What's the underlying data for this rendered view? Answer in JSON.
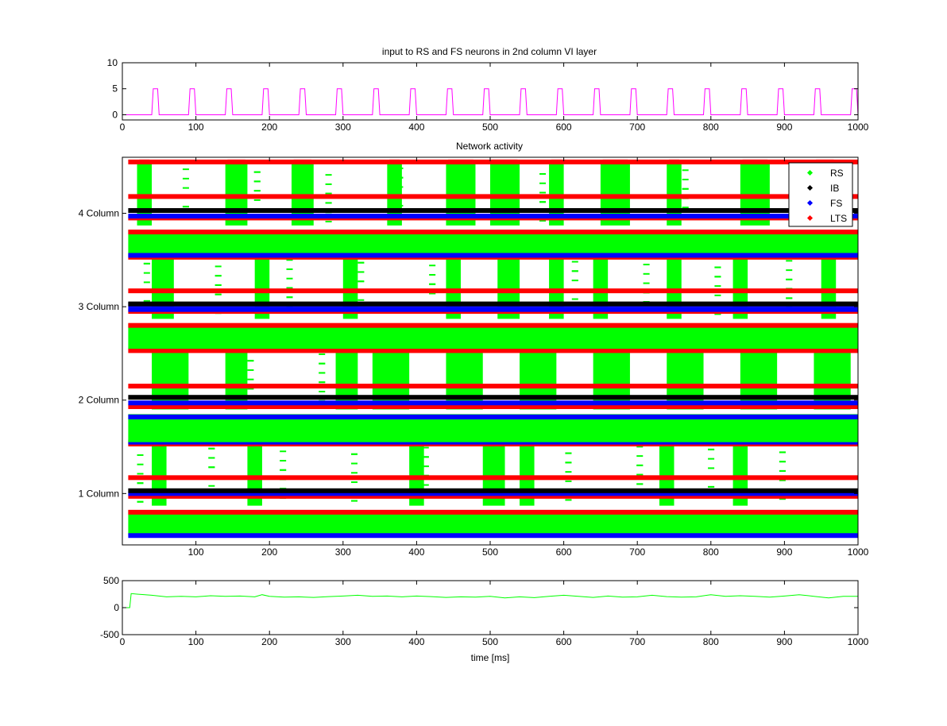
{
  "chart_data": [
    {
      "type": "line",
      "title": "input to RS and FS neurons in 2nd column VI layer",
      "xlim": [
        0,
        1000
      ],
      "ylim": [
        -1,
        10
      ],
      "xticks": [
        "0",
        "100",
        "200",
        "300",
        "400",
        "500",
        "600",
        "700",
        "800",
        "900",
        "1000"
      ],
      "yticks": [
        "0",
        "5",
        "10"
      ],
      "series": [
        {
          "color": "#ff00ff",
          "pulse_starts": [
            40,
            90,
            140,
            190,
            240,
            290,
            340,
            390,
            440,
            490,
            540,
            590,
            640,
            690,
            740,
            790,
            840,
            890,
            940,
            990
          ],
          "pulse_width": 10,
          "high": 5,
          "low": 0
        }
      ]
    },
    {
      "type": "scatter",
      "title": "Network activity",
      "xlim": [
        0,
        1000
      ],
      "xticks": [
        "100",
        "200",
        "300",
        "400",
        "500",
        "600",
        "700",
        "800",
        "900",
        "1000"
      ],
      "yticks": [
        "1 Column",
        "2 Column",
        "3 Column",
        "4 Column"
      ],
      "legend_position": "top-right",
      "series": [
        {
          "name": "RS",
          "color": "#00ff00"
        },
        {
          "name": "IB",
          "color": "#000000"
        },
        {
          "name": "FS",
          "color": "#0000ff"
        },
        {
          "name": "LTS",
          "color": "#ff0000"
        }
      ],
      "columns": [
        {
          "label": "1 Column",
          "green_base": [
            0.55,
            0.82
          ],
          "blue_lines": [
            0.55,
            1.0,
            1.55
          ],
          "black_lines": [
            1.03
          ],
          "red_lines": [
            0.8,
            0.97,
            1.17,
            1.53
          ]
        },
        {
          "label": "2 Column",
          "green_base": [
            1.55,
            1.85
          ],
          "blue_lines": [
            1.82,
            1.97
          ],
          "black_lines": [
            2.03
          ],
          "red_lines": [
            1.93,
            2.15,
            2.53
          ]
        },
        {
          "label": "3 Column",
          "green_base": [
            2.55,
            2.82
          ],
          "blue_lines": [
            2.97,
            3.02
          ],
          "black_lines": [
            3.03
          ],
          "red_lines": [
            2.8,
            2.95,
            3.17,
            3.53
          ]
        },
        {
          "label": "4 Column",
          "green_base": [
            3.55,
            3.82
          ],
          "blue_lines": [
            3.55,
            3.97
          ],
          "black_lines": [
            4.03
          ],
          "red_lines": [
            3.8,
            3.95,
            4.18,
            4.55
          ]
        }
      ],
      "bursts": {
        "col1": [
          [
            40,
            60
          ],
          [
            170,
            190
          ],
          [
            390,
            410
          ],
          [
            490,
            520
          ],
          [
            540,
            560
          ],
          [
            730,
            750
          ],
          [
            830,
            850
          ]
        ],
        "col2": [
          [
            40,
            90
          ],
          [
            140,
            170
          ],
          [
            290,
            320
          ],
          [
            340,
            390
          ],
          [
            440,
            490
          ],
          [
            540,
            590
          ],
          [
            640,
            690
          ],
          [
            740,
            790
          ],
          [
            840,
            890
          ],
          [
            940,
            990
          ]
        ],
        "col3": [
          [
            40,
            70
          ],
          [
            180,
            200
          ],
          [
            300,
            320
          ],
          [
            440,
            460
          ],
          [
            510,
            540
          ],
          [
            580,
            600
          ],
          [
            640,
            660
          ],
          [
            740,
            760
          ],
          [
            830,
            850
          ],
          [
            950,
            970
          ]
        ],
        "col4": [
          [
            20,
            40
          ],
          [
            140,
            170
          ],
          [
            230,
            260
          ],
          [
            360,
            380
          ],
          [
            440,
            480
          ],
          [
            500,
            540
          ],
          [
            580,
            600
          ],
          [
            650,
            690
          ],
          [
            740,
            760
          ],
          [
            840,
            880
          ],
          [
            940,
            970
          ]
        ]
      }
    },
    {
      "type": "line",
      "title": "",
      "xlabel": "time [ms]",
      "xlim": [
        0,
        1000
      ],
      "ylim": [
        -500,
        500
      ],
      "xticks": [
        "0",
        "100",
        "200",
        "300",
        "400",
        "500",
        "600",
        "700",
        "800",
        "900",
        "1000"
      ],
      "yticks": [
        "-500",
        "0",
        "500"
      ],
      "series": [
        {
          "color": "#00ff00",
          "x": [
            0,
            10,
            12,
            20,
            40,
            60,
            80,
            100,
            120,
            140,
            160,
            180,
            190,
            200,
            220,
            240,
            260,
            280,
            300,
            320,
            340,
            360,
            380,
            400,
            420,
            440,
            460,
            480,
            500,
            520,
            540,
            560,
            580,
            600,
            620,
            640,
            660,
            680,
            700,
            720,
            740,
            760,
            780,
            800,
            820,
            840,
            860,
            880,
            900,
            920,
            940,
            960,
            980,
            1000
          ],
          "y": [
            0,
            0,
            260,
            250,
            230,
            200,
            210,
            200,
            220,
            210,
            215,
            200,
            240,
            210,
            195,
            200,
            190,
            205,
            215,
            230,
            210,
            215,
            200,
            215,
            205,
            190,
            200,
            195,
            210,
            180,
            200,
            185,
            210,
            230,
            210,
            190,
            215,
            195,
            200,
            230,
            205,
            195,
            200,
            240,
            210,
            220,
            210,
            195,
            215,
            240,
            210,
            180,
            210,
            210
          ]
        }
      ]
    }
  ]
}
